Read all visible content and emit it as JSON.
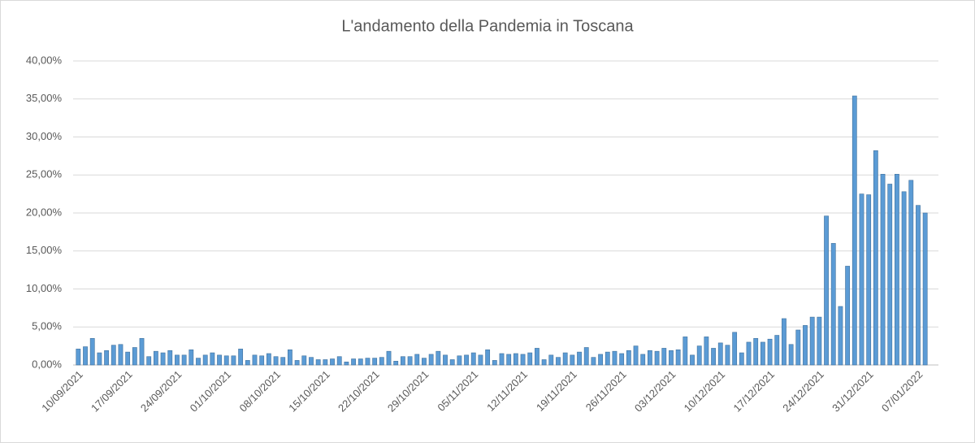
{
  "chart_data": {
    "type": "bar",
    "title": "L'andamento della Pandemia in Toscana",
    "categories": [
      "10/09/2021",
      null,
      null,
      null,
      null,
      null,
      null,
      "17/09/2021",
      null,
      null,
      null,
      null,
      null,
      null,
      "24/09/2021",
      null,
      null,
      null,
      null,
      null,
      null,
      "01/10/2021",
      null,
      null,
      null,
      null,
      null,
      null,
      "08/10/2021",
      null,
      null,
      null,
      null,
      null,
      null,
      "15/10/2021",
      null,
      null,
      null,
      null,
      null,
      null,
      "22/10/2021",
      null,
      null,
      null,
      null,
      null,
      null,
      "29/10/2021",
      null,
      null,
      null,
      null,
      null,
      null,
      "05/11/2021",
      null,
      null,
      null,
      null,
      null,
      null,
      "12/11/2021",
      null,
      null,
      null,
      null,
      null,
      null,
      "19/11/2021",
      null,
      null,
      null,
      null,
      null,
      null,
      "26/11/2021",
      null,
      null,
      null,
      null,
      null,
      null,
      "03/12/2021",
      null,
      null,
      null,
      null,
      null,
      null,
      "10/12/2021",
      null,
      null,
      null,
      null,
      null,
      null,
      "17/12/2021",
      null,
      null,
      null,
      null,
      null,
      null,
      "24/12/2021",
      null,
      null,
      null,
      null,
      null,
      null,
      "31/12/2021",
      null,
      null,
      null,
      null,
      null,
      null,
      "07/01/2022",
      null
    ],
    "values": [
      2.1,
      2.4,
      3.5,
      1.6,
      1.9,
      2.6,
      2.7,
      1.7,
      2.3,
      3.5,
      1.1,
      1.8,
      1.6,
      1.9,
      1.3,
      1.3,
      2.0,
      0.9,
      1.3,
      1.6,
      1.3,
      1.2,
      1.2,
      2.1,
      0.6,
      1.3,
      1.2,
      1.5,
      1.1,
      1.0,
      2.0,
      0.6,
      1.2,
      1.0,
      0.7,
      0.7,
      0.8,
      1.1,
      0.4,
      0.8,
      0.8,
      0.9,
      0.9,
      1.0,
      1.8,
      0.5,
      1.1,
      1.1,
      1.4,
      0.9,
      1.4,
      1.8,
      1.3,
      0.7,
      1.2,
      1.3,
      1.6,
      1.3,
      2.0,
      0.6,
      1.5,
      1.4,
      1.5,
      1.4,
      1.6,
      2.2,
      0.7,
      1.3,
      1.0,
      1.6,
      1.3,
      1.7,
      2.3,
      1.0,
      1.4,
      1.7,
      1.8,
      1.5,
      1.9,
      2.5,
      1.4,
      1.9,
      1.8,
      2.2,
      1.9,
      2.0,
      3.7,
      1.3,
      2.5,
      3.7,
      2.2,
      2.9,
      2.6,
      4.3,
      1.6,
      3.0,
      3.5,
      3.0,
      3.4,
      3.9,
      6.1,
      2.7,
      4.6,
      5.2,
      6.3,
      6.3,
      19.6,
      16.0,
      7.7,
      13.0,
      35.4,
      22.5,
      22.4,
      28.2,
      25.1,
      23.8,
      25.1,
      22.8,
      24.3,
      21.0,
      20.0
    ],
    "color": "#5b9bd5",
    "ylim": [
      0,
      40
    ],
    "yticks": [
      {
        "value": 0,
        "label": "0,00%"
      },
      {
        "value": 5,
        "label": "5,00%"
      },
      {
        "value": 10,
        "label": "10,00%"
      },
      {
        "value": 15,
        "label": "15,00%"
      },
      {
        "value": 20,
        "label": "20,00%"
      },
      {
        "value": 25,
        "label": "25,00%"
      },
      {
        "value": 30,
        "label": "30,00%"
      },
      {
        "value": 35,
        "label": "35,00%"
      },
      {
        "value": 40,
        "label": "40,00%"
      }
    ],
    "grid": true
  }
}
